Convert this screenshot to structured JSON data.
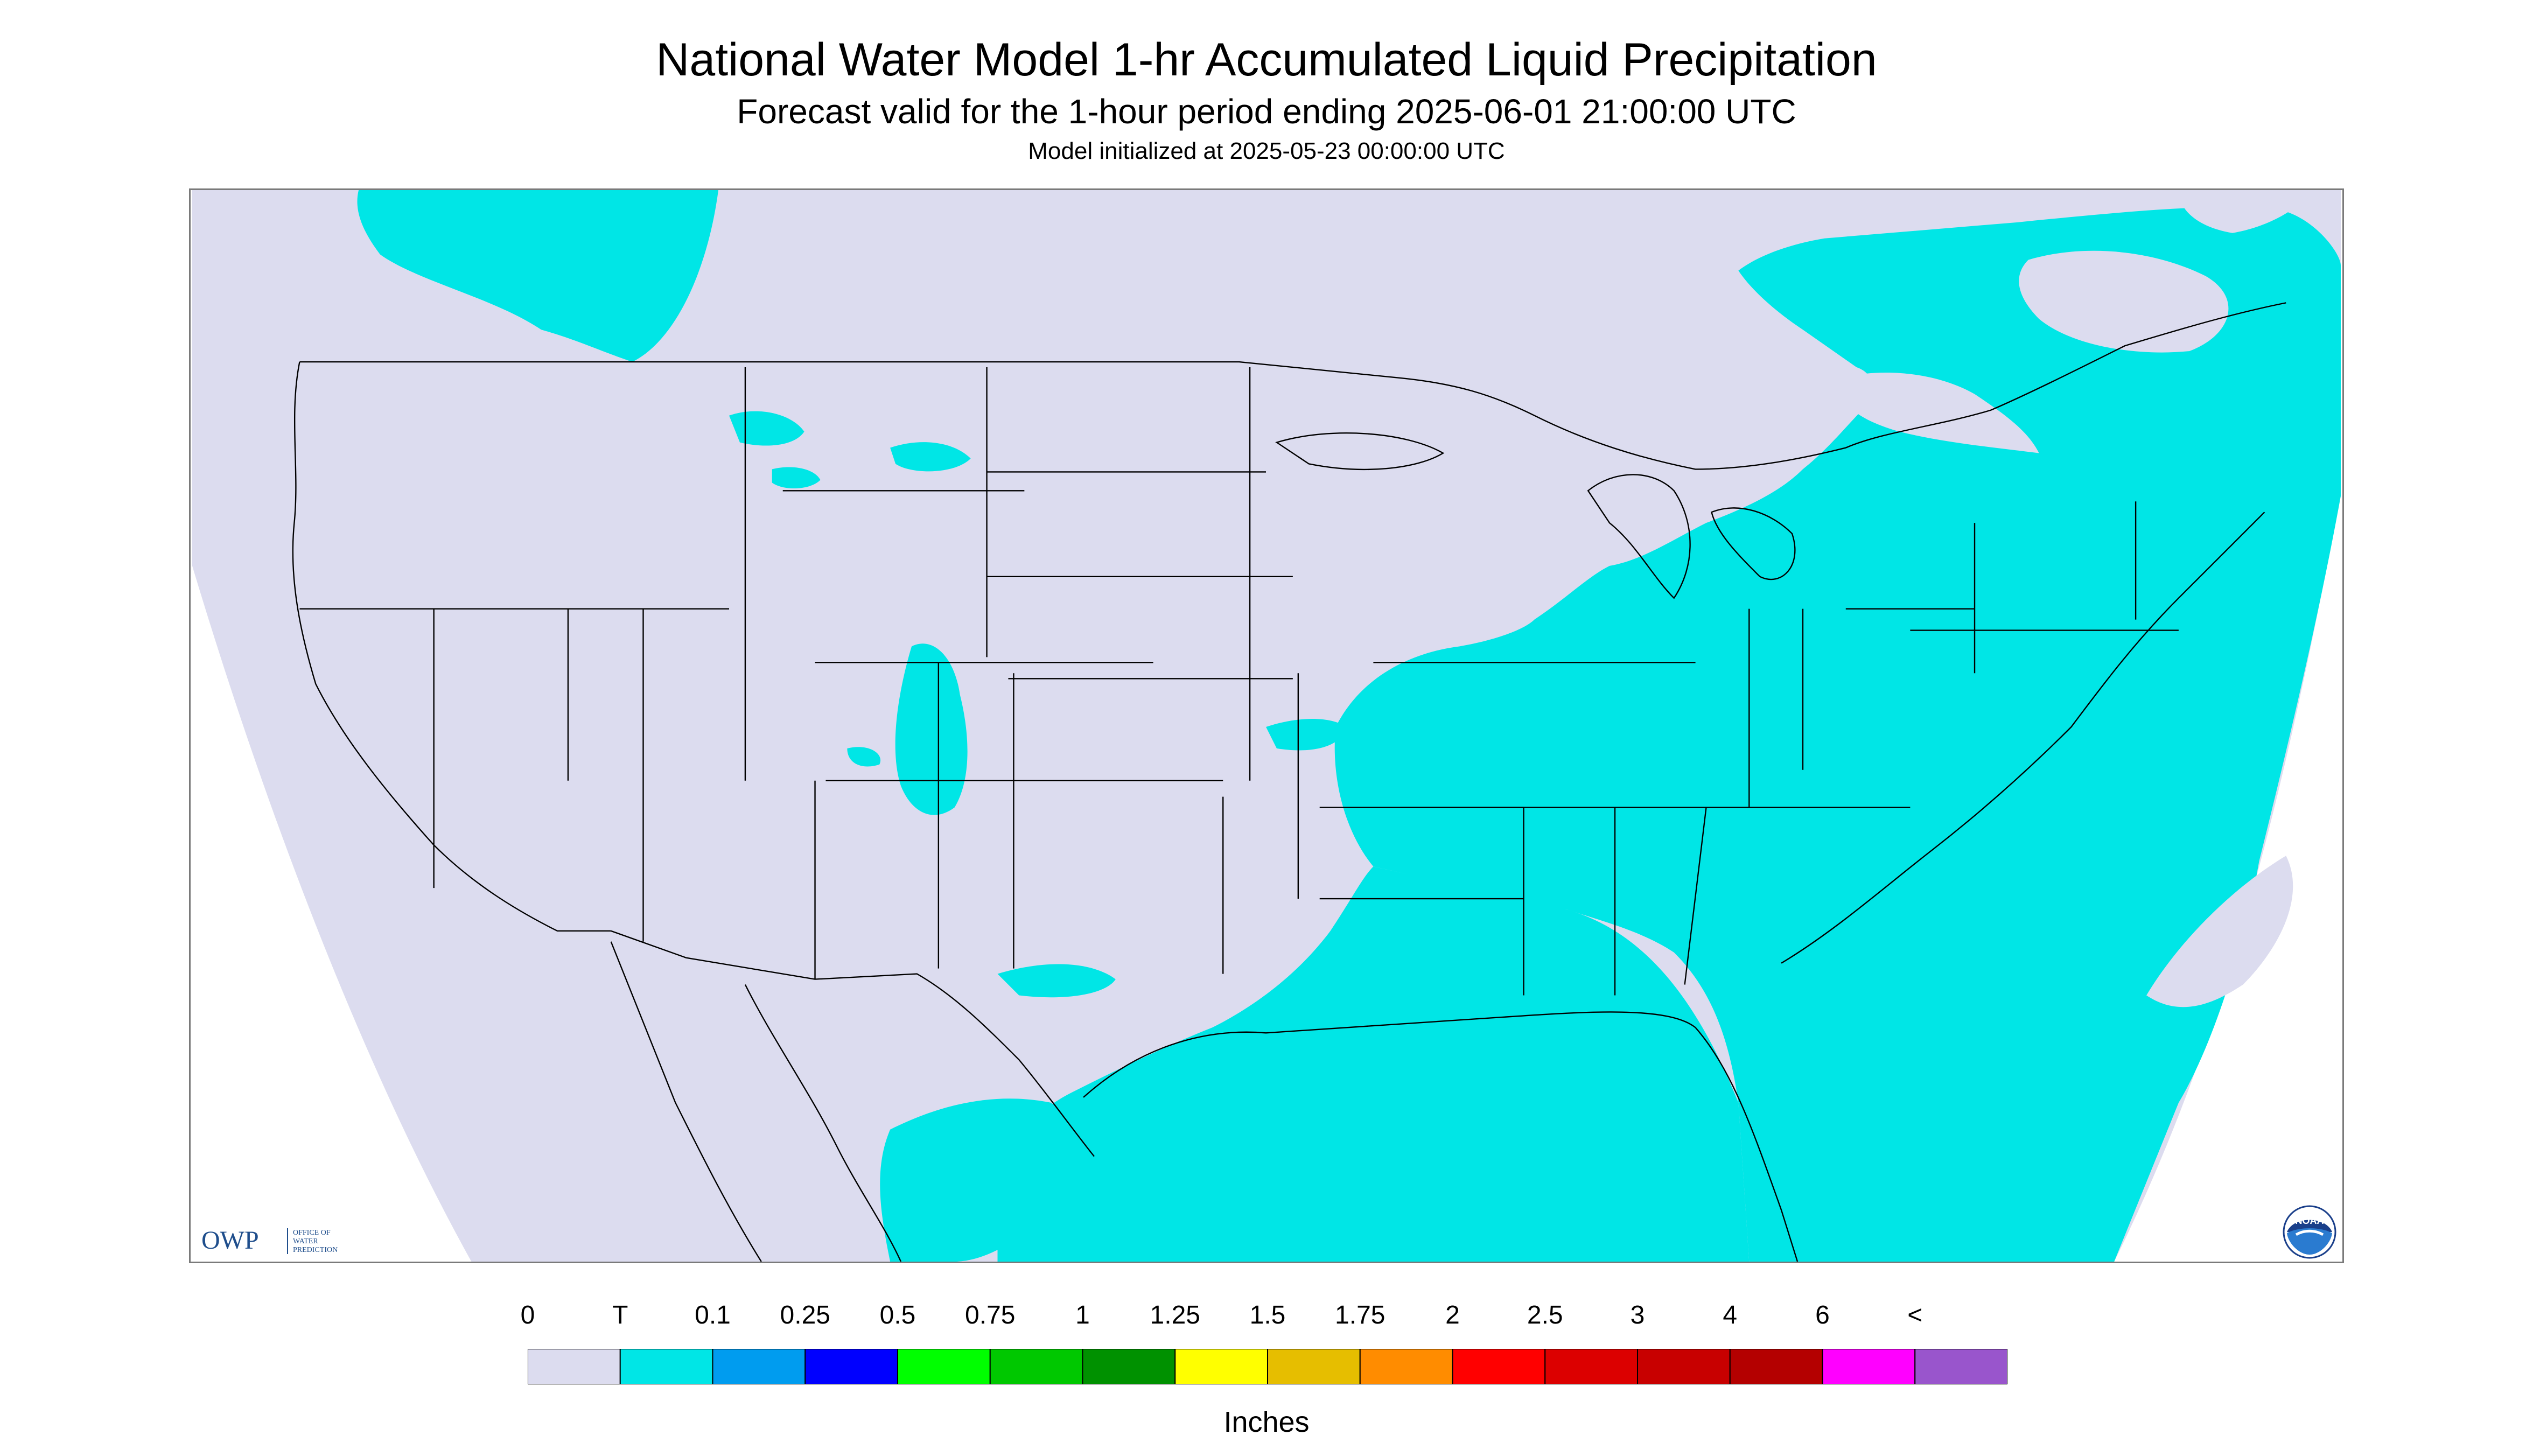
{
  "header": {
    "title": "National Water Model 1-hr Accumulated Liquid Precipitation",
    "subtitle": "Forecast valid for the 1-hour period ending 2025-06-01 21:00:00 UTC",
    "init": "Model initialized at 2025-05-23 00:00:00 UTC"
  },
  "map": {
    "projection_background": "#dcdcef",
    "precip_color": "#00e6e6",
    "boundary_color": "#000000"
  },
  "logos": {
    "owp": {
      "mark": "OWP",
      "line1": "OFFICE OF",
      "line2": "WATER",
      "line3": "PREDICTION",
      "color": "#1f4e8c"
    },
    "noaa": {
      "mark": "NOAA",
      "icon": "noaa-logo-icon"
    }
  },
  "legend": {
    "labels": [
      "0",
      "T",
      "0.1",
      "0.25",
      "0.5",
      "0.75",
      "1",
      "1.25",
      "1.5",
      "1.75",
      "2",
      "2.5",
      "3",
      "4",
      "6",
      "<"
    ],
    "colors": [
      "#dcdcef",
      "#00e6e6",
      "#009cef",
      "#0000ff",
      "#00ff00",
      "#00c800",
      "#009100",
      "#ffff00",
      "#e6be00",
      "#ff8c00",
      "#ff0000",
      "#dc0000",
      "#c80000",
      "#b40000",
      "#ff00ff",
      "#9955cc"
    ],
    "units": "Inches"
  }
}
